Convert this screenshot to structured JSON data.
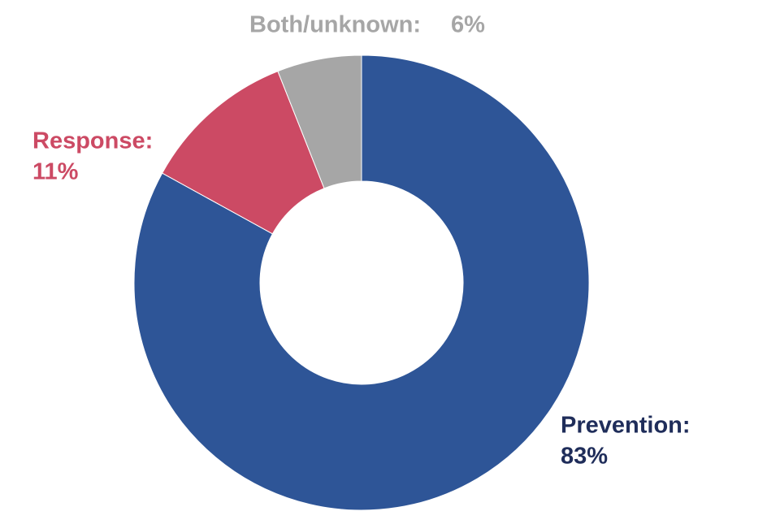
{
  "chart_data": {
    "type": "donut",
    "categories": [
      "Prevention:",
      "Response:",
      "Both/unknown:"
    ],
    "values": [
      83,
      11,
      6
    ],
    "value_labels": [
      "83%",
      "11%",
      "6%"
    ],
    "colors": [
      "#2e5597",
      "#cc4a64",
      "#a6a6a6"
    ]
  }
}
